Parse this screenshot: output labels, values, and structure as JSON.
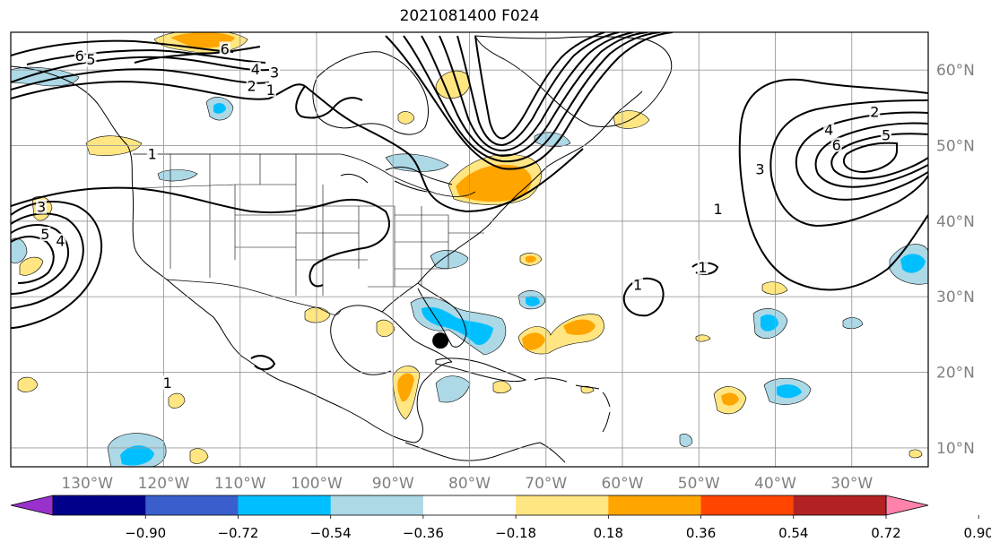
{
  "title": "2021081400 F024",
  "map": {
    "projection": "equirectangular",
    "lon_range": [
      -140,
      -20
    ],
    "lat_range": [
      7.5,
      65
    ],
    "grid": true,
    "lon_ticks": [
      {
        "value": -130,
        "label": "130°W"
      },
      {
        "value": -120,
        "label": "120°W"
      },
      {
        "value": -110,
        "label": "110°W"
      },
      {
        "value": -100,
        "label": "100°W"
      },
      {
        "value": -90,
        "label": "90°W"
      },
      {
        "value": -80,
        "label": "80°W"
      },
      {
        "value": -70,
        "label": "70°W"
      },
      {
        "value": -60,
        "label": "60°W"
      },
      {
        "value": -50,
        "label": "50°W"
      },
      {
        "value": -40,
        "label": "40°W"
      },
      {
        "value": -30,
        "label": "30°W"
      }
    ],
    "lat_ticks": [
      {
        "value": 10,
        "label": "10°N"
      },
      {
        "value": 20,
        "label": "20°N"
      },
      {
        "value": 30,
        "label": "30°N"
      },
      {
        "value": 40,
        "label": "40°N"
      },
      {
        "value": 50,
        "label": "50°N"
      },
      {
        "value": 60,
        "label": "60°N"
      }
    ],
    "marker": {
      "lon": -83.8,
      "lat": 24.2,
      "color": "#000000"
    }
  },
  "contours": {
    "labels": [
      {
        "text": "6",
        "lon": -131,
        "lat": 61.8
      },
      {
        "text": "5",
        "lon": -129.5,
        "lat": 61.3
      },
      {
        "text": "6",
        "lon": -112,
        "lat": 62.7
      },
      {
        "text": "4",
        "lon": -108,
        "lat": 60.0
      },
      {
        "text": "3",
        "lon": -105.5,
        "lat": 59.6
      },
      {
        "text": "2",
        "lon": -108.5,
        "lat": 57.8
      },
      {
        "text": "1",
        "lon": -106,
        "lat": 57.3
      },
      {
        "text": "1",
        "lon": -121.5,
        "lat": 48.8
      },
      {
        "text": "3",
        "lon": -136,
        "lat": 41.8
      },
      {
        "text": "5",
        "lon": -135.5,
        "lat": 38.2
      },
      {
        "text": "4",
        "lon": -133.5,
        "lat": 37.3
      },
      {
        "text": "1",
        "lon": -58,
        "lat": 31.5
      },
      {
        "text": "1",
        "lon": -49.5,
        "lat": 33.8
      },
      {
        "text": "2",
        "lon": -27,
        "lat": 54.4
      },
      {
        "text": "4",
        "lon": -33,
        "lat": 52.0
      },
      {
        "text": "5",
        "lon": -25.5,
        "lat": 51.3
      },
      {
        "text": "6",
        "lon": -32,
        "lat": 50.0
      },
      {
        "text": "3",
        "lon": -42,
        "lat": 46.8
      },
      {
        "text": "1",
        "lon": -47.5,
        "lat": 41.5
      },
      {
        "text": "1",
        "lon": -119.5,
        "lat": 18.5
      }
    ]
  },
  "colorbar": {
    "tick_labels": [
      "−0.90",
      "−0.72",
      "−0.54",
      "−0.36",
      "−0.18",
      "0.18",
      "0.36",
      "0.54",
      "0.72",
      "0.90"
    ],
    "segment_colors": [
      "#9932CC",
      "#00008B",
      "#3A5FCD",
      "#00BFFF",
      "#ADD8E6",
      "#FFFFFF",
      "#FFE682",
      "#FFA500",
      "#FF4500",
      "#B22222",
      "#FF82AB"
    ]
  }
}
